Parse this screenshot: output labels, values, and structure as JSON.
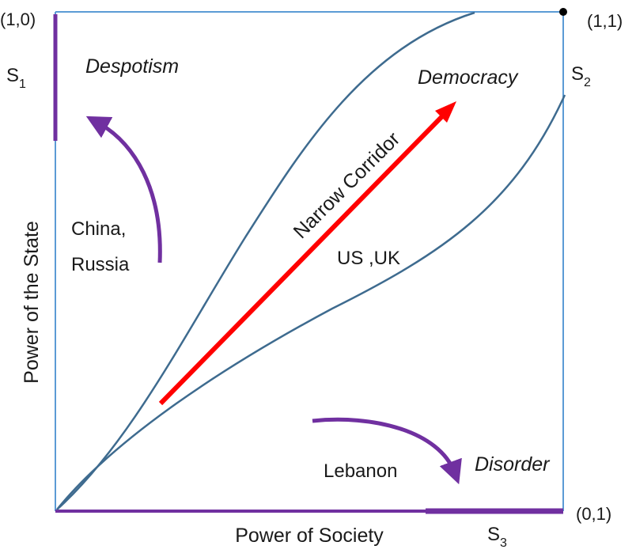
{
  "axes": {
    "x_label": "Power of Society",
    "y_label": "Power of the State"
  },
  "corners": {
    "top_left": "(1,0)",
    "top_right": "(1,1)",
    "bottom_right": "(0,1)"
  },
  "states": {
    "s1": {
      "letter": "S",
      "sub": "1"
    },
    "s2": {
      "letter": "S",
      "sub": "2"
    },
    "s3": {
      "letter": "S",
      "sub": "3"
    }
  },
  "regions": {
    "despotism": "Despotism",
    "democracy": "Democracy",
    "disorder": "Disorder"
  },
  "corridor_label": "Narrow Corridor",
  "examples": {
    "china_line1": "China,",
    "china_line2": "Russia",
    "us_uk": "US ,UK",
    "lebanon": "Lebanon"
  },
  "colors": {
    "frame": "#5b9bd5",
    "curve": "#3e6b8f",
    "corridor_arrow": "#ff0000",
    "purple": "#7030a0",
    "text": "#1a1a1a"
  }
}
